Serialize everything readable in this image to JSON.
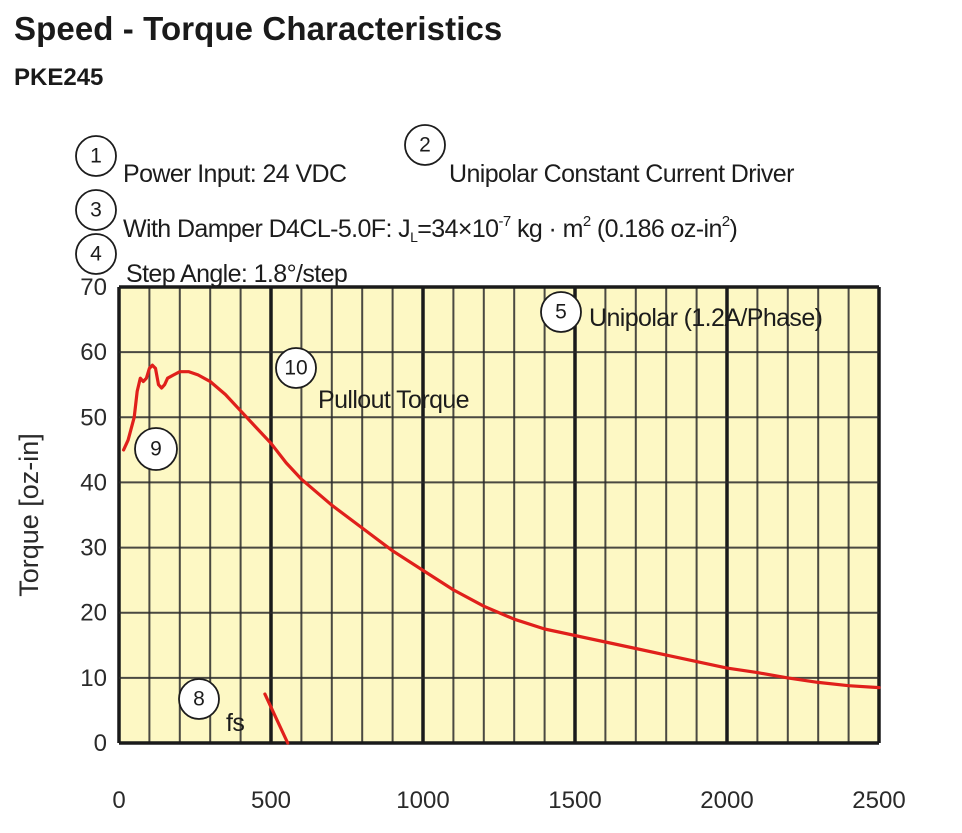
{
  "title": "Speed - Torque Characteristics",
  "subtitle": "PKE245",
  "notes": {
    "power_input": "Power Input: 24 VDC",
    "driver": "Unipolar Constant Current Driver",
    "damper_prefix": "With Damper D4CL-5.0F: J",
    "damper_sub": "L",
    "damper_mid": "=34×10",
    "damper_exp": "-7",
    "damper_unit": " kg · m",
    "damper_unit_exp": "2",
    "damper_alt": " (0.186 oz-in",
    "damper_alt_exp": "2",
    "damper_close": ")",
    "step_angle": "Step Angle: 1.8°/step",
    "mode": "Unipolar (1.2A/Phase)",
    "pullout": "Pullout Torque",
    "fs": "fs"
  },
  "markers": {
    "m1": "1",
    "m2": "2",
    "m3": "3",
    "m4": "4",
    "m5": "5",
    "m8": "8",
    "m9": "9",
    "m10": "10"
  },
  "colors": {
    "plot_background": "#fdf8c4",
    "curve": "#e0201b",
    "grid": "#1a1a1a"
  },
  "chart_data": {
    "type": "line",
    "title": "Speed - Torque Characteristics",
    "subtitle": "PKE245",
    "ylabel": "Torque [oz-in]",
    "xlabel": "",
    "xlim": [
      0,
      2500
    ],
    "ylim": [
      0,
      70
    ],
    "xticks": [
      0,
      500,
      1000,
      1500,
      2000,
      2500
    ],
    "yticks": [
      0,
      10,
      20,
      30,
      40,
      50,
      60,
      70
    ],
    "grid": true,
    "legend": "none",
    "series": [
      {
        "name": "Pullout Torque",
        "color": "#e0201b",
        "x": [
          15,
          30,
          50,
          60,
          70,
          80,
          90,
          100,
          110,
          120,
          130,
          140,
          150,
          160,
          180,
          200,
          230,
          260,
          300,
          350,
          400,
          450,
          500,
          550,
          600,
          700,
          800,
          900,
          1000,
          1100,
          1200,
          1300,
          1400,
          1500,
          1600,
          1700,
          1800,
          1900,
          2000,
          2100,
          2200,
          2300,
          2400,
          2500
        ],
        "y": [
          45,
          46.5,
          50,
          54,
          56,
          55.5,
          56,
          57.5,
          58,
          57.5,
          55,
          54.5,
          55,
          56,
          56.5,
          57,
          57,
          56.5,
          55.5,
          53.5,
          51,
          48.5,
          46,
          43,
          40.5,
          36.5,
          33,
          29.5,
          26.5,
          23.5,
          21,
          19,
          17.5,
          16.5,
          15.5,
          14.5,
          13.5,
          12.5,
          11.5,
          10.8,
          10,
          9.3,
          8.8,
          8.5
        ]
      },
      {
        "name": "fs",
        "color": "#e0201b",
        "x": [
          480,
          555
        ],
        "y": [
          7.5,
          0
        ]
      }
    ]
  }
}
